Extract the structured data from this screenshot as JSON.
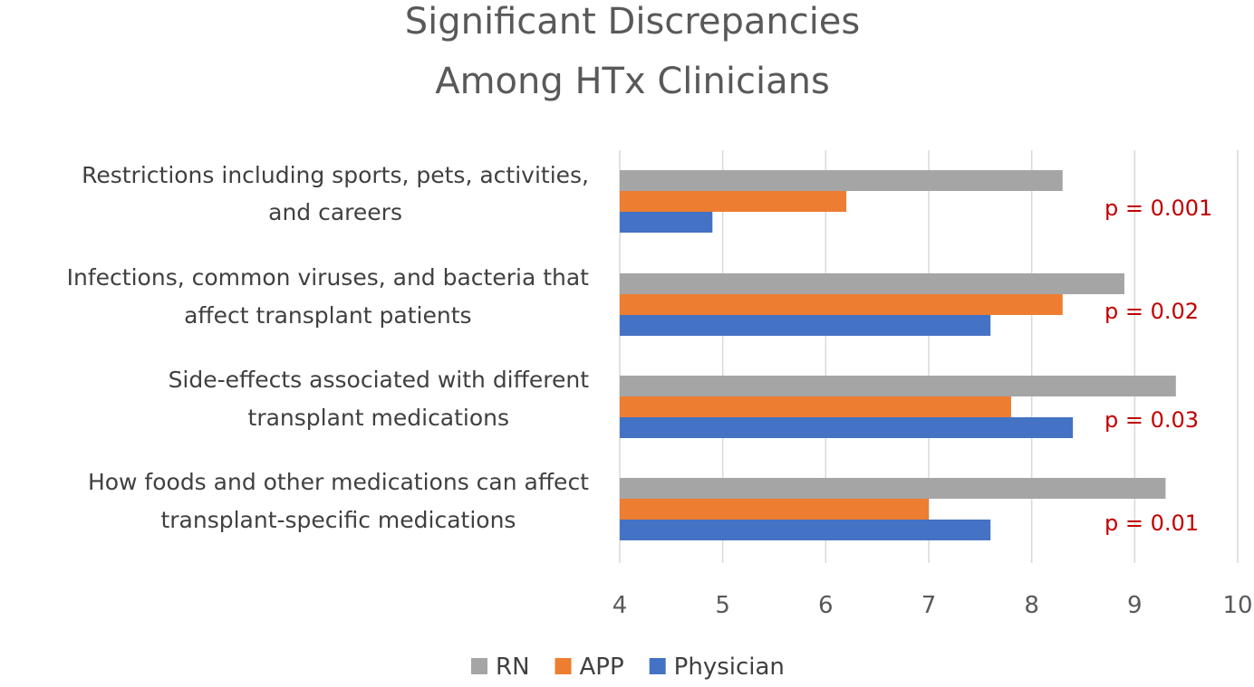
{
  "chart_data": {
    "type": "bar",
    "orientation": "horizontal",
    "title": [
      "Significant Discrepancies",
      "Among HTx Clinicians"
    ],
    "categories": [
      [
        "Restrictions including sports, pets, activities,",
        "and careers"
      ],
      [
        "Infections, common viruses, and bacteria that",
        "affect transplant patients"
      ],
      [
        "Side-effects associated with different",
        "transplant medications"
      ],
      [
        "How foods and other medications can affect",
        "transplant-specific medications"
      ]
    ],
    "series": [
      {
        "name": "RN",
        "color": "#a5a5a5",
        "values": [
          8.3,
          8.9,
          9.4,
          9.3
        ]
      },
      {
        "name": "APP",
        "color": "#ed7d31",
        "values": [
          6.2,
          8.3,
          7.8,
          7.0
        ]
      },
      {
        "name": "Physician",
        "color": "#4472c4",
        "values": [
          4.9,
          7.6,
          8.4,
          7.6
        ]
      }
    ],
    "annotations": [
      "p = 0.001",
      "p = 0.02",
      "p = 0.03",
      "p = 0.01"
    ],
    "annotation_color": "#c00000",
    "xlim": [
      4,
      10
    ],
    "xticks": [
      4,
      5,
      6,
      7,
      8,
      9,
      10
    ],
    "grid": true,
    "legend_position": "bottom"
  }
}
